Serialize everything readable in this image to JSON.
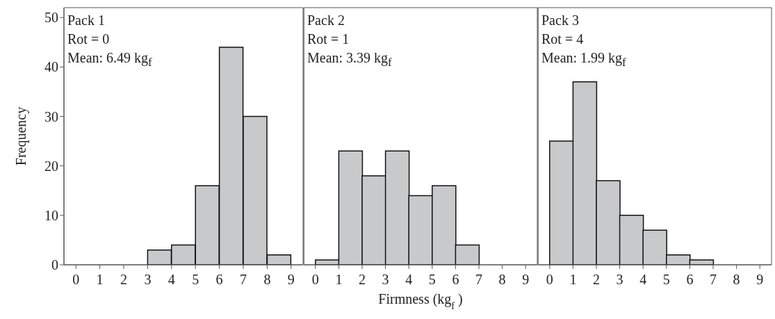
{
  "chart_data": [
    {
      "type": "histogram",
      "ylabel": "Frequency",
      "annotations": [
        "Pack 1",
        "Rot = 0",
        "Mean: 6.49 kg$_{f}$"
      ],
      "bins": [
        0,
        1,
        2,
        3,
        4,
        5,
        6,
        7,
        8,
        9
      ],
      "values": [
        0,
        0,
        0,
        3,
        4,
        16,
        44,
        30,
        2
      ],
      "color": "#c8c9cb",
      "xlim": [
        -0.5,
        9.5
      ],
      "xticks": [
        0,
        1,
        2,
        3,
        4,
        5,
        6,
        7,
        8,
        9
      ],
      "ylim": [
        0,
        52
      ],
      "yticks": [
        0,
        10,
        20,
        30,
        40,
        50
      ]
    },
    {
      "type": "histogram",
      "xlabel": "Firmness (kg$_{f}$)",
      "annotations": [
        "Pack 2",
        "Rot = 1",
        "Mean: 3.39 kg$_{f}$"
      ],
      "bins": [
        0,
        1,
        2,
        3,
        4,
        5,
        6,
        7,
        8,
        9
      ],
      "values": [
        1,
        23,
        18,
        23,
        14,
        16,
        4,
        0,
        0
      ],
      "color": "#c8c9cb",
      "xlim": [
        -0.5,
        9.5
      ],
      "xticks": [
        0,
        1,
        2,
        3,
        4,
        5,
        6,
        7,
        8,
        9
      ],
      "ylim": [
        0,
        52
      ],
      "yticks": [
        0,
        10,
        20,
        30,
        40,
        50
      ],
      "tick_labels": "x"
    },
    {
      "type": "histogram",
      "annotations": [
        "Pack 3",
        "Rot = 4",
        "Mean: 1.99 kg$_{f}$"
      ],
      "bins": [
        0,
        1,
        2,
        3,
        4,
        5,
        6,
        7,
        8,
        9
      ],
      "values": [
        25,
        37,
        17,
        10,
        7,
        2,
        1,
        0,
        0
      ],
      "color": "#c8c9cb",
      "xlim": [
        -0.5,
        9.5
      ],
      "xticks": [
        0,
        1,
        2,
        3,
        4,
        5,
        6,
        7,
        8,
        9
      ],
      "ylim": [
        0,
        52
      ],
      "yticks": [
        0,
        10,
        20,
        30,
        40,
        50
      ],
      "tick_labels": "x"
    }
  ]
}
